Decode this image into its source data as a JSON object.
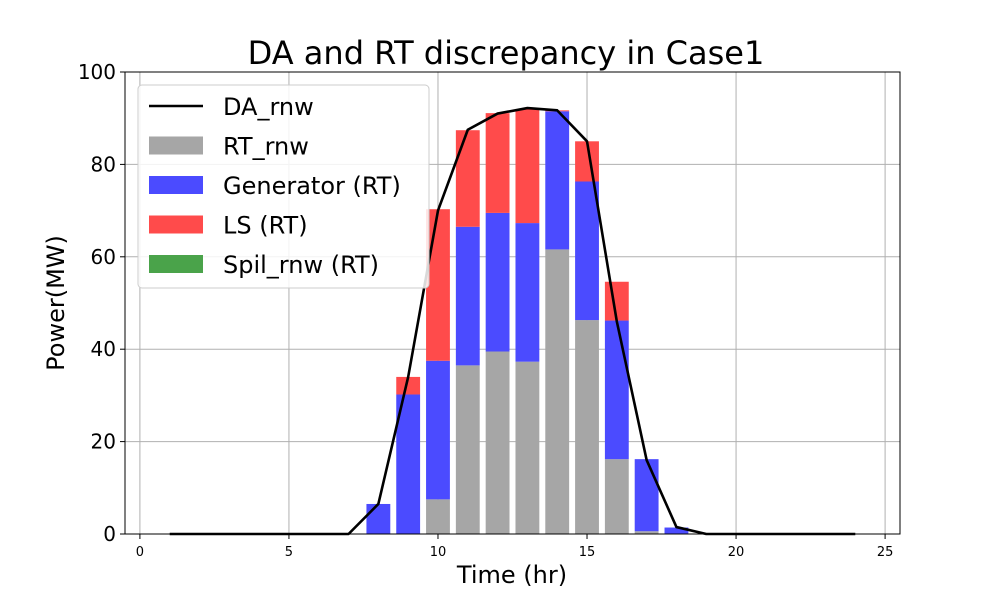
{
  "chart_data": {
    "type": "bar",
    "title": "DA and RT discrepancy in Case1",
    "xlabel": "Time (hr)",
    "ylabel": "Power(MW)",
    "xlim": [
      -0.5,
      25.5
    ],
    "ylim": [
      0,
      100
    ],
    "xticks": [
      0,
      5,
      10,
      15,
      20,
      25
    ],
    "yticks": [
      0,
      20,
      40,
      60,
      80,
      100
    ],
    "grid": true,
    "legend_position": "top-left",
    "legend": [
      "DA_rnw",
      "RT_rnw",
      "Generator (RT)",
      "LS (RT)",
      "Spil_rnw (RT)"
    ],
    "hours": [
      1,
      2,
      3,
      4,
      5,
      6,
      7,
      8,
      9,
      10,
      11,
      12,
      13,
      14,
      15,
      16,
      17,
      18,
      19,
      20,
      21,
      22,
      23,
      24
    ],
    "da_rnw": [
      0,
      0,
      0,
      0,
      0,
      0,
      0,
      6.5,
      34,
      70,
      87.5,
      91,
      92.2,
      91.7,
      85,
      46,
      16,
      1.5,
      0,
      0,
      0,
      0,
      0,
      0
    ],
    "rt_rnw": [
      0,
      0,
      0,
      0,
      0,
      0,
      0,
      0,
      0,
      7.5,
      36.5,
      39.5,
      37.3,
      61.6,
      46.3,
      16.2,
      0.6,
      0,
      0,
      0,
      0,
      0,
      0,
      0
    ],
    "generator_rt": [
      0,
      0,
      0,
      0,
      0,
      0,
      0,
      6.5,
      30.2,
      30,
      30,
      30,
      30,
      29.9,
      30,
      30,
      15.6,
      1.4,
      0,
      0,
      0,
      0,
      0,
      0
    ],
    "ls_rt": [
      0,
      0,
      0,
      0,
      0,
      0,
      0,
      0,
      3.8,
      32.8,
      20.9,
      21.6,
      24.7,
      0.2,
      8.7,
      8.4,
      0,
      0,
      0,
      0,
      0,
      0,
      0,
      0
    ],
    "spil_rnw_rt": [
      0,
      0,
      0,
      0,
      0,
      0,
      0,
      0,
      0,
      0,
      0,
      0,
      0,
      0,
      0,
      0,
      0,
      0,
      0,
      0,
      0,
      0,
      0,
      0
    ],
    "colors": {
      "da_rnw": "#000000",
      "rt_rnw": "#a6a6a6",
      "generator_rt": "#4b4bff",
      "ls_rt": "#ff4b4b",
      "spil_rnw_rt": "#4aa34a"
    }
  }
}
